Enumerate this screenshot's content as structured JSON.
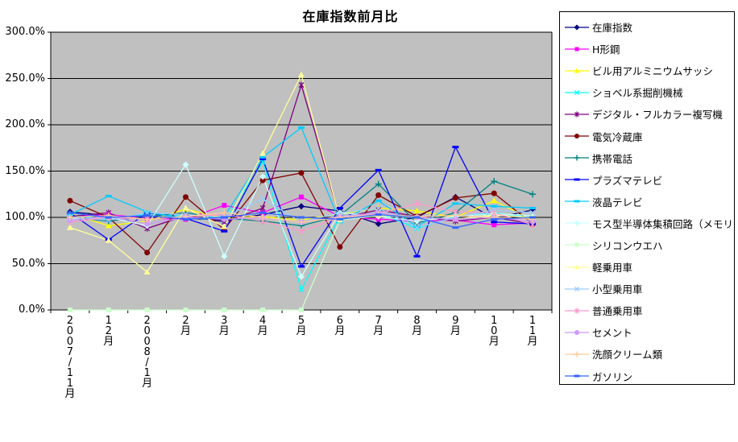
{
  "chart_data": {
    "type": "line",
    "title": "在庫指数前月比",
    "categories": [
      "2007/11月",
      "12月",
      "2008/1月",
      "2月",
      "3月",
      "4月",
      "5月",
      "6月",
      "7月",
      "8月",
      "9月",
      "10月",
      "11月"
    ],
    "y_ticks": [
      "0.0%",
      "50.0%",
      "100.0%",
      "150.0%",
      "200.0%",
      "250.0%",
      "300.0%"
    ],
    "ylim": [
      0,
      300
    ],
    "y_grid_step": 50,
    "grid": true,
    "legend_position": "right",
    "plot_background": "#C0C0C0",
    "axis_color": "#000000",
    "series": [
      {
        "name": "在庫指数",
        "color": "#000080",
        "marker": "diamond",
        "values": [
          106,
          102,
          100,
          99,
          97,
          103,
          112,
          107,
          93,
          100,
          122,
          99,
          108
        ]
      },
      {
        "name": "H形鋼",
        "color": "#FF00FF",
        "marker": "square",
        "values": [
          101,
          103,
          99,
          98,
          113,
          105,
          122,
          101,
          98,
          96,
          97,
          92,
          94
        ]
      },
      {
        "name": "ビル用アルミニウムサッシ",
        "color": "#FFFF00",
        "marker": "triangle",
        "values": [
          104,
          91,
          96,
          109,
          99,
          101,
          97,
          104,
          110,
          107,
          100,
          118,
          97
        ]
      },
      {
        "name": "ショベル系掘削機械",
        "color": "#00FFFF",
        "marker": "x",
        "values": [
          102,
          98,
          104,
          101,
          95,
          160,
          22,
          101,
          105,
          88,
          101,
          105,
          100
        ]
      },
      {
        "name": "デジタル・フルカラー複写機",
        "color": "#800080",
        "marker": "asterisk",
        "values": [
          101,
          105,
          88,
          102,
          95,
          110,
          243,
          99,
          108,
          101,
          96,
          100,
          93
        ]
      },
      {
        "name": "電気冷蔵庫",
        "color": "#800000",
        "marker": "circle",
        "values": [
          118,
          100,
          62,
          122,
          87,
          140,
          148,
          68,
          124,
          101,
          121,
          126,
          93
        ]
      },
      {
        "name": "携帯電話",
        "color": "#008080",
        "marker": "plus",
        "values": [
          100,
          96,
          101,
          105,
          99,
          96,
          91,
          102,
          136,
          94,
          105,
          139,
          125
        ]
      },
      {
        "name": "プラズマテレビ",
        "color": "#0000FF",
        "marker": "dash",
        "values": [
          105,
          76,
          105,
          99,
          85,
          163,
          47,
          110,
          151,
          58,
          176,
          95,
          93
        ]
      },
      {
        "name": "液晶テレビ",
        "color": "#00CCFF",
        "marker": "dash",
        "values": [
          103,
          123,
          106,
          98,
          101,
          165,
          197,
          95,
          118,
          90,
          115,
          112,
          110
        ]
      },
      {
        "name": "モス型半導体集積回路（メモリ）",
        "color": "#CCFFFF",
        "marker": "diamond",
        "values": [
          98,
          100,
          91,
          157,
          58,
          144,
          36,
          105,
          101,
          96,
          101,
          104,
          102
        ]
      },
      {
        "name": "シリコンウエハ",
        "color": "#CCFFCC",
        "marker": "square",
        "values": [
          0,
          0,
          0,
          0,
          0,
          0,
          0,
          97,
          102,
          100,
          98,
          103,
          100
        ]
      },
      {
        "name": "軽乗用車",
        "color": "#FFFF99",
        "marker": "triangle",
        "values": [
          89,
          75,
          41,
          110,
          90,
          169,
          254,
          98,
          103,
          100,
          98,
          102,
          100
        ]
      },
      {
        "name": "小型乗用車",
        "color": "#99CCFF",
        "marker": "x",
        "values": [
          100,
          97,
          105,
          103,
          100,
          120,
          95,
          105,
          110,
          89,
          100,
          108,
          105
        ]
      },
      {
        "name": "普通乗用車",
        "color": "#FF99CC",
        "marker": "asterisk",
        "values": [
          95,
          100,
          98,
          101,
          103,
          96,
          85,
          100,
          104,
          115,
          106,
          105,
          92
        ]
      },
      {
        "name": "セメント",
        "color": "#CC99FF",
        "marker": "circle",
        "values": [
          97,
          101,
          93,
          100,
          98,
          100,
          95,
          101,
          105,
          100,
          98,
          100,
          96
        ]
      },
      {
        "name": "洗顔クリーム類",
        "color": "#FFCC99",
        "marker": "plus",
        "values": [
          100,
          102,
          98,
          101,
          105,
          100,
          95,
          100,
          103,
          101,
          102,
          100,
          98
        ]
      },
      {
        "name": "ガソリン",
        "color": "#3366FF",
        "marker": "dash",
        "values": [
          105,
          100,
          102,
          98,
          100,
          105,
          100,
          98,
          103,
          100,
          89,
          98,
          100
        ]
      }
    ]
  }
}
